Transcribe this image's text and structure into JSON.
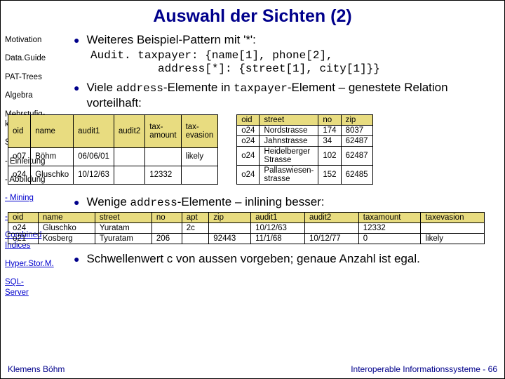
{
  "title": "Auswahl der Sichten (2)",
  "sidebar": {
    "items": [
      {
        "label": "Motivation",
        "link": false
      },
      {
        "label": "Data.Guide",
        "link": false
      },
      {
        "label": "PAT-Trees",
        "link": false
      },
      {
        "label": "Algebra",
        "link": false
      },
      {
        "label": "Mehrstufig-\nkeit",
        "link": false
      },
      {
        "label": "STORED",
        "link": false
      },
      {
        "label": "- Einleitung",
        "link": false
      },
      {
        "label": "- Abbildung",
        "link": false
      },
      {
        "label": "- Mining",
        "link": true
      },
      {
        "label": "- Ausblick",
        "link": true
      },
      {
        "label": "Combined\nIndices",
        "link": true
      },
      {
        "label": "Hyper.Stor.M.",
        "link": true
      },
      {
        "label": "SQL-\nServer",
        "link": true
      }
    ]
  },
  "bullets": {
    "b1_text": "Weiteres Beispiel-Pattern mit '*':",
    "b1_code": "Audit. taxpayer: {name[1], phone[2],\n          address[*]: {street[1], city[1]}}",
    "b2_pre": "Viele ",
    "b2_c1": "address",
    "b2_mid": "-Elemente in ",
    "b2_c2": "taxpayer",
    "b2_post": "-Element – genestete Relation vorteilhaft:",
    "b3_pre": "Wenige ",
    "b3_c1": "address",
    "b3_post": "-Elemente – inlining besser:",
    "b4_text": "Schwellenwert c von aussen vorgeben; genaue Anzahl ist egal."
  },
  "tableA": {
    "header_bg": "#e8dc80",
    "columns": [
      "oid",
      "name",
      "audit1",
      "audit2",
      "tax-\namount",
      "tax-\nevasion"
    ],
    "rows": [
      [
        "o07",
        "Böhm",
        "06/06/01",
        "",
        "",
        "likely"
      ],
      [
        "o24",
        "Gluschko",
        "10/12/63",
        "",
        "12332",
        ""
      ]
    ]
  },
  "tableB": {
    "header_bg": "#e8dc80",
    "columns": [
      "oid",
      "street",
      "no",
      "zip"
    ],
    "rows": [
      [
        "o24",
        "Nordstrasse",
        "174",
        "8037"
      ],
      [
        "o24",
        "Jahnstrasse",
        "34",
        "62487"
      ],
      [
        "o24",
        "Heidelberger\nStrasse",
        "102",
        "62487"
      ],
      [
        "o24",
        "Pallaswiesen-\nstrasse",
        "152",
        "62485"
      ]
    ]
  },
  "tableC": {
    "header_bg": "#e8dc80",
    "columns": [
      "oid",
      "name",
      "street",
      "no",
      "apt",
      "zip",
      "audit1",
      "audit2",
      "taxamount",
      "taxevasion"
    ],
    "rows": [
      [
        "o24",
        "Gluschko",
        "Yuratam",
        "",
        "2c",
        "",
        "10/12/63",
        "",
        "12332",
        ""
      ],
      [
        "o21",
        "Kosberg",
        "Tyuratam",
        "206",
        "",
        "92443",
        "11/1/68",
        "10/12/77",
        "0",
        "likely"
      ]
    ]
  },
  "footer": {
    "left": "Klemens Böhm",
    "right": "Interoperable Informationssysteme - 66"
  }
}
